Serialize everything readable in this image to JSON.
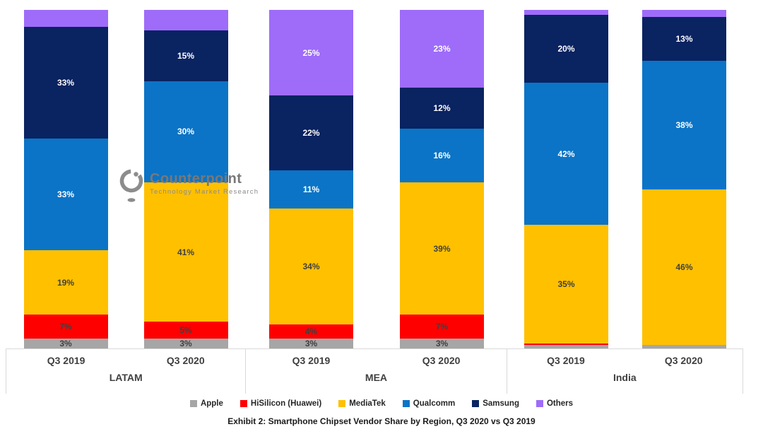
{
  "logo": {
    "name": "Counterpoint",
    "tagline": "Technology Market Research"
  },
  "colors": {
    "axis_text": "#404040",
    "border": "#D9D9D9",
    "caption_text": "#1A1A1A",
    "logo_gray": "#8C8C8C"
  },
  "chart_data": {
    "type": "stacked-bar",
    "unit": "percent",
    "title": "Exhibit 2: Smartphone Chipset Vendor Share by Region, Q3 2020 vs Q3 2019",
    "legend_position": "bottom",
    "grid": false,
    "ylim": [
      0,
      100
    ],
    "legend": [
      {
        "name": "Apple",
        "color": "#A6A6A6",
        "label_color": "#404040"
      },
      {
        "name": "HiSilicon (Huawei)",
        "color": "#FF0000",
        "label_color": "#404040"
      },
      {
        "name": "MediaTek",
        "color": "#FFC000",
        "label_color": "#404040"
      },
      {
        "name": "Qualcomm",
        "color": "#0B74C6",
        "label_color": "#FFFFFF"
      },
      {
        "name": "Samsung",
        "color": "#0A2361",
        "label_color": "#FFFFFF"
      },
      {
        "name": "Others",
        "color": "#9E6CF9",
        "label_color": "#FFFFFF"
      }
    ],
    "groups": [
      {
        "region": "LATAM",
        "bars": [
          {
            "quarter": "Q3 2019",
            "segments": [
              {
                "vendor": "Apple",
                "value": 3,
                "label": "3%"
              },
              {
                "vendor": "HiSilicon (Huawei)",
                "value": 7,
                "label": "7%"
              },
              {
                "vendor": "MediaTek",
                "value": 19,
                "label": "19%"
              },
              {
                "vendor": "Qualcomm",
                "value": 33,
                "label": "33%"
              },
              {
                "vendor": "Samsung",
                "value": 33,
                "label": "33%"
              },
              {
                "vendor": "Others",
                "value": 5,
                "label": ""
              }
            ]
          },
          {
            "quarter": "Q3 2020",
            "segments": [
              {
                "vendor": "Apple",
                "value": 3,
                "label": "3%"
              },
              {
                "vendor": "HiSilicon (Huawei)",
                "value": 5,
                "label": "5%"
              },
              {
                "vendor": "MediaTek",
                "value": 41,
                "label": "41%"
              },
              {
                "vendor": "Qualcomm",
                "value": 30,
                "label": "30%"
              },
              {
                "vendor": "Samsung",
                "value": 15,
                "label": "15%"
              },
              {
                "vendor": "Others",
                "value": 6,
                "label": ""
              }
            ]
          }
        ]
      },
      {
        "region": "MEA",
        "bars": [
          {
            "quarter": "Q3 2019",
            "segments": [
              {
                "vendor": "Apple",
                "value": 3,
                "label": "3%"
              },
              {
                "vendor": "HiSilicon (Huawei)",
                "value": 4,
                "label": "4%"
              },
              {
                "vendor": "MediaTek",
                "value": 34,
                "label": "34%"
              },
              {
                "vendor": "Qualcomm",
                "value": 11,
                "label": "11%"
              },
              {
                "vendor": "Samsung",
                "value": 22,
                "label": "22%"
              },
              {
                "vendor": "Others",
                "value": 25,
                "label": "25%"
              }
            ]
          },
          {
            "quarter": "Q3 2020",
            "segments": [
              {
                "vendor": "Apple",
                "value": 3,
                "label": "3%"
              },
              {
                "vendor": "HiSilicon (Huawei)",
                "value": 7,
                "label": "7%"
              },
              {
                "vendor": "MediaTek",
                "value": 39,
                "label": "39%"
              },
              {
                "vendor": "Qualcomm",
                "value": 16,
                "label": "16%"
              },
              {
                "vendor": "Samsung",
                "value": 12,
                "label": "12%"
              },
              {
                "vendor": "Others",
                "value": 23,
                "label": "23%"
              }
            ]
          }
        ]
      },
      {
        "region": "India",
        "bars": [
          {
            "quarter": "Q3 2019",
            "segments": [
              {
                "vendor": "Apple",
                "value": 1,
                "label": ""
              },
              {
                "vendor": "HiSilicon (Huawei)",
                "value": 0.5,
                "label": ""
              },
              {
                "vendor": "MediaTek",
                "value": 35,
                "label": "35%"
              },
              {
                "vendor": "Qualcomm",
                "value": 42,
                "label": "42%"
              },
              {
                "vendor": "Samsung",
                "value": 20,
                "label": "20%"
              },
              {
                "vendor": "Others",
                "value": 1.5,
                "label": ""
              }
            ]
          },
          {
            "quarter": "Q3 2020",
            "segments": [
              {
                "vendor": "Apple",
                "value": 1,
                "label": ""
              },
              {
                "vendor": "HiSilicon (Huawei)",
                "value": 0,
                "label": ""
              },
              {
                "vendor": "MediaTek",
                "value": 46,
                "label": "46%"
              },
              {
                "vendor": "Qualcomm",
                "value": 38,
                "label": "38%"
              },
              {
                "vendor": "Samsung",
                "value": 13,
                "label": "13%"
              },
              {
                "vendor": "Others",
                "value": 2,
                "label": ""
              }
            ]
          }
        ]
      }
    ]
  }
}
